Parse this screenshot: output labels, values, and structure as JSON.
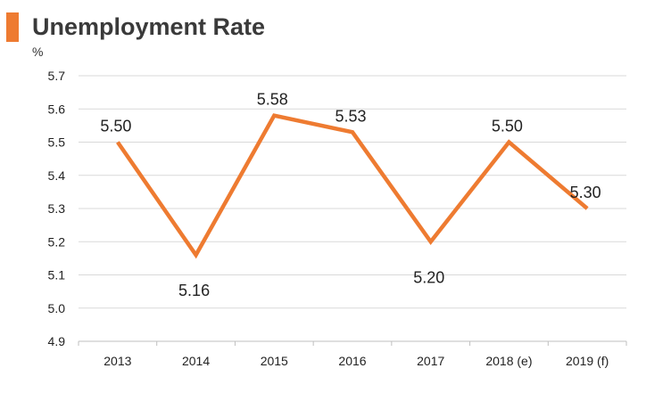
{
  "chart_data": {
    "type": "line",
    "title": "Unemployment Rate",
    "ylabel": "%",
    "xlabel": "",
    "categories": [
      "2013",
      "2014",
      "2015",
      "2016",
      "2017",
      "2018 (e)",
      "2019 (f)"
    ],
    "series": [
      {
        "name": "Unemployment Rate",
        "values": [
          5.5,
          5.16,
          5.58,
          5.53,
          5.2,
          5.5,
          5.3
        ],
        "labels": [
          "5.50",
          "5.16",
          "5.58",
          "5.53",
          "5.20",
          "5.50",
          "5.30"
        ],
        "label_side": [
          "above",
          "below",
          "above",
          "above",
          "below",
          "above",
          "above"
        ]
      }
    ],
    "ylim": [
      4.9,
      5.7
    ],
    "yticks": [
      "4.9",
      "5.0",
      "5.1",
      "5.2",
      "5.3",
      "5.4",
      "5.5",
      "5.6",
      "5.7"
    ],
    "grid": true,
    "legend": "none",
    "colors": {
      "line": "#ee7b31",
      "grid": "#d9d9d9",
      "axis": "#bfbfbf",
      "text": "#222222"
    }
  }
}
